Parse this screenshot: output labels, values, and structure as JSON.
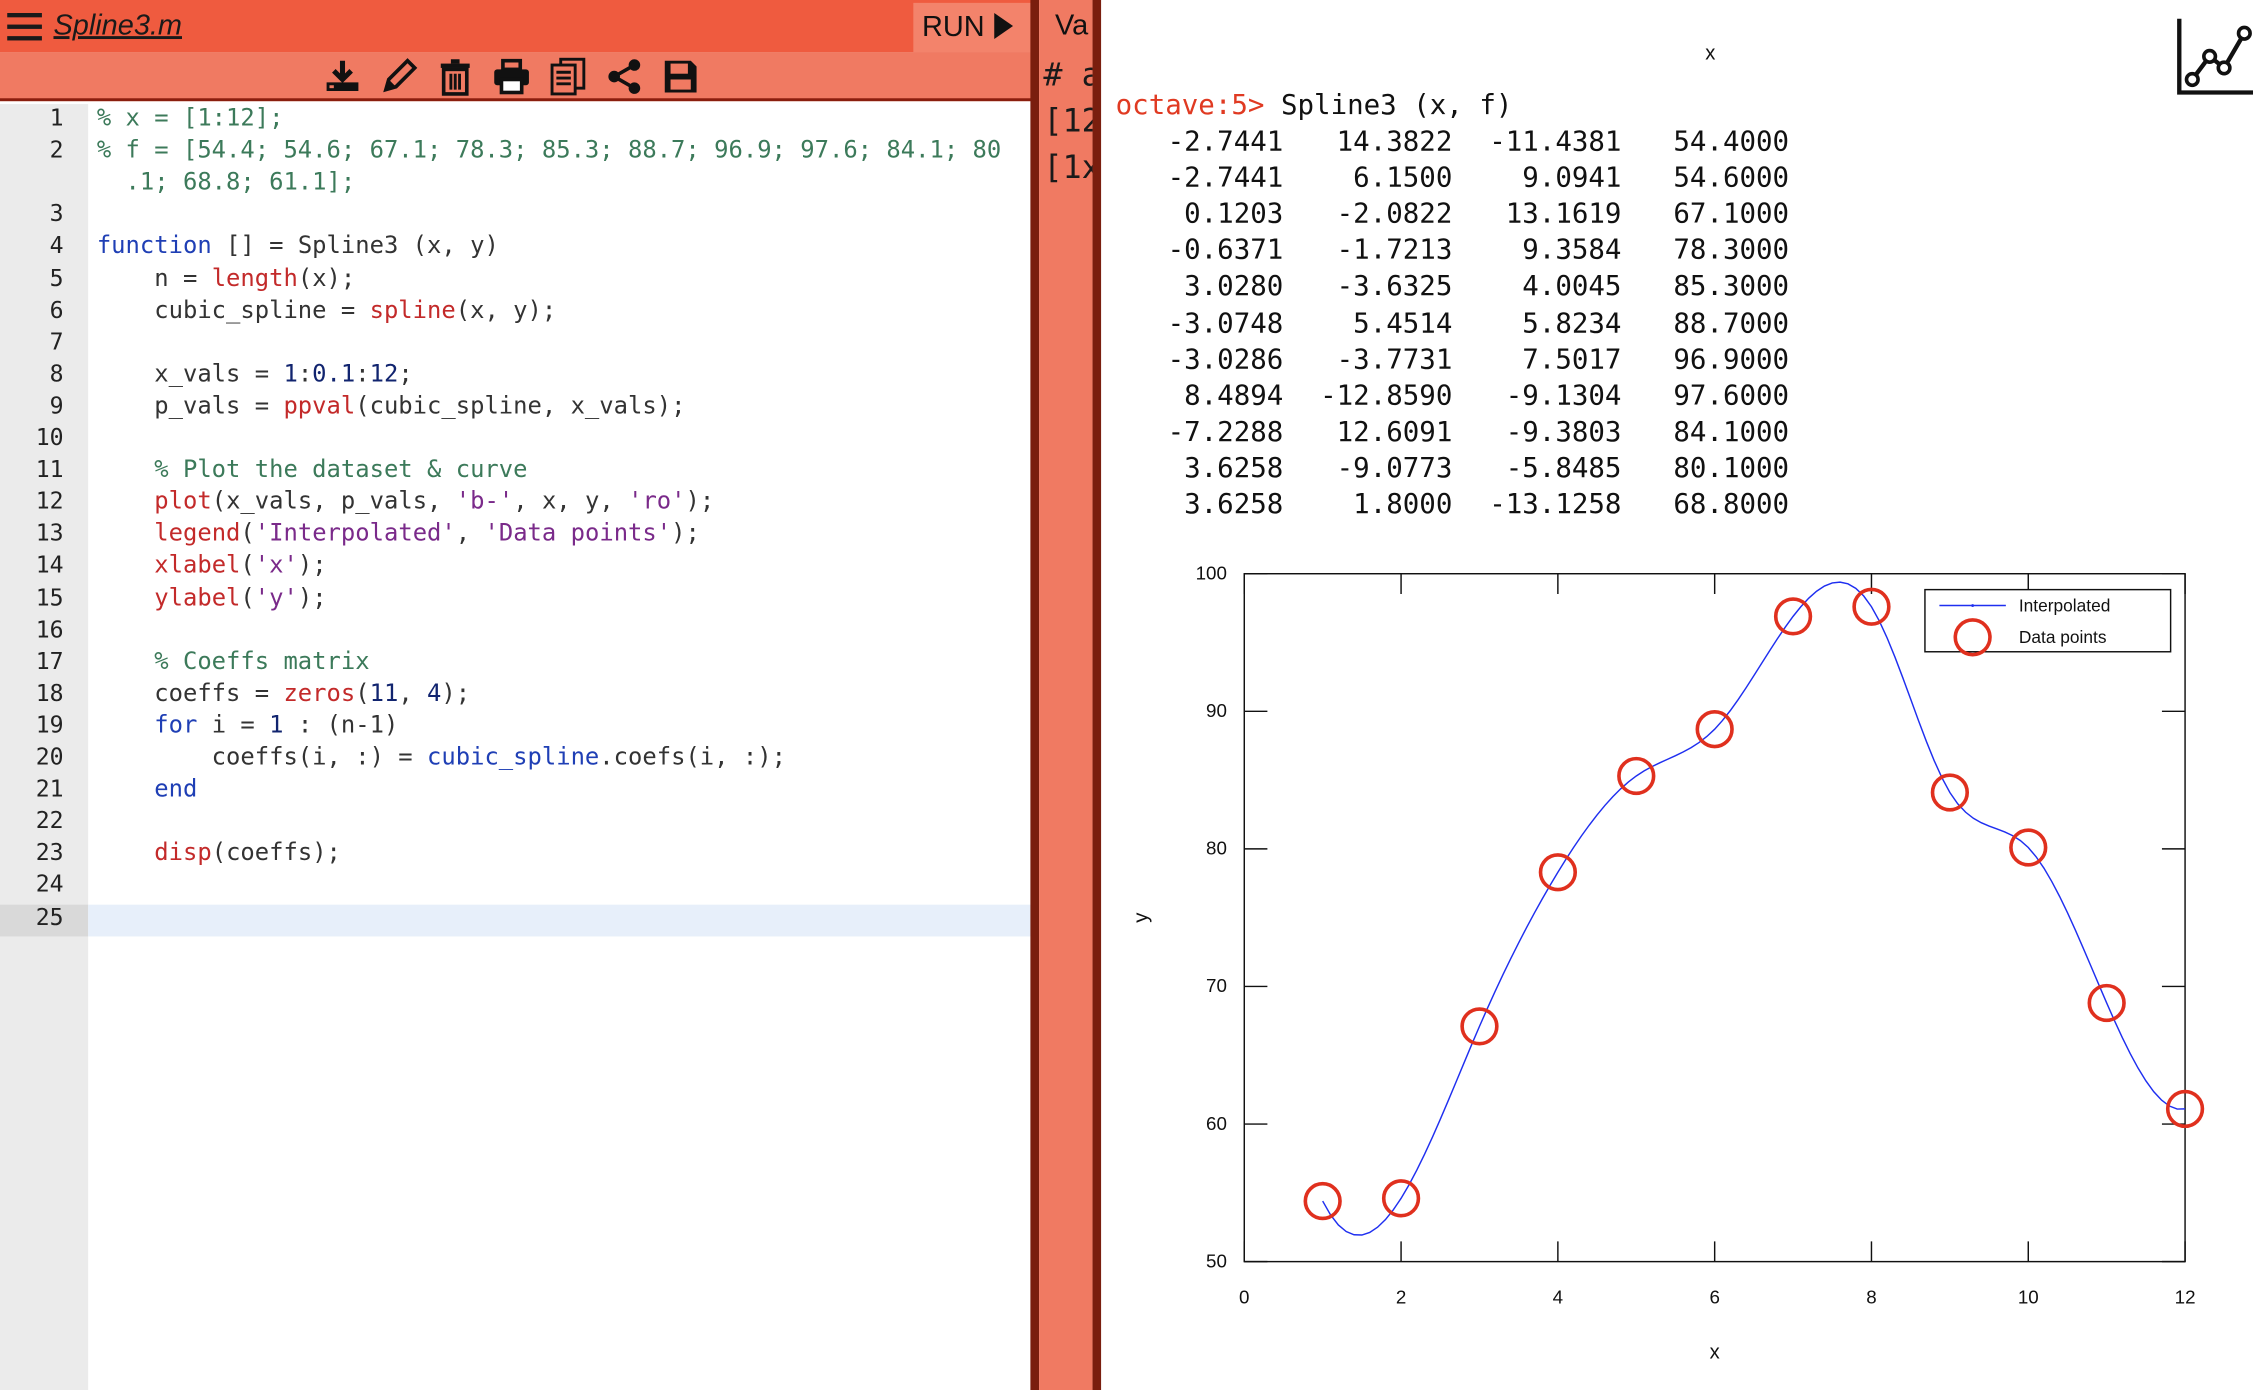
{
  "editor": {
    "filename": "Spline3.m",
    "run_label": "RUN",
    "toolbar_icons": [
      "download-icon",
      "pencil-icon",
      "trash-icon",
      "print-icon",
      "document-icon",
      "share-icon",
      "save-icon"
    ],
    "line_numbers": [
      "1",
      "2",
      "",
      "3",
      "4",
      "5",
      "6",
      "7",
      "8",
      "9",
      "10",
      "11",
      "12",
      "13",
      "14",
      "15",
      "16",
      "17",
      "18",
      "19",
      "20",
      "21",
      "22",
      "23",
      "24",
      "25"
    ],
    "code_lines": [
      [
        {
          "t": "% x = [1:12];",
          "c": "cm"
        }
      ],
      [
        {
          "t": "% f = [54.4; 54.6; 67.1; 78.3; 85.3; 88.7; 96.9; 97.6; 84.1; 80",
          "c": "cm"
        }
      ],
      [
        {
          "t": "  .1; 68.8; 61.1];",
          "c": "cm"
        }
      ],
      [],
      [
        {
          "t": "function",
          "c": "kw"
        },
        {
          "t": " [] = Spline3 (x, y)",
          "c": "pl"
        }
      ],
      [
        {
          "t": "    n = ",
          "c": "pl"
        },
        {
          "t": "length",
          "c": "fn"
        },
        {
          "t": "(x);",
          "c": "pl"
        }
      ],
      [
        {
          "t": "    cubic_spline = ",
          "c": "pl"
        },
        {
          "t": "spline",
          "c": "fn"
        },
        {
          "t": "(x, y);",
          "c": "pl"
        }
      ],
      [],
      [
        {
          "t": "    x_vals = ",
          "c": "pl"
        },
        {
          "t": "1",
          "c": "nm"
        },
        {
          "t": ":",
          "c": "pl"
        },
        {
          "t": "0.1",
          "c": "nm"
        },
        {
          "t": ":",
          "c": "pl"
        },
        {
          "t": "12",
          "c": "nm"
        },
        {
          "t": ";",
          "c": "pl"
        }
      ],
      [
        {
          "t": "    p_vals = ",
          "c": "pl"
        },
        {
          "t": "ppval",
          "c": "fn"
        },
        {
          "t": "(cubic_spline, x_vals);",
          "c": "pl"
        }
      ],
      [],
      [
        {
          "t": "    % Plot the dataset & curve",
          "c": "cm"
        }
      ],
      [
        {
          "t": "    ",
          "c": "pl"
        },
        {
          "t": "plot",
          "c": "fn"
        },
        {
          "t": "(x_vals, p_vals, ",
          "c": "pl"
        },
        {
          "t": "'b-'",
          "c": "st"
        },
        {
          "t": ", x, y, ",
          "c": "pl"
        },
        {
          "t": "'ro'",
          "c": "st"
        },
        {
          "t": ");",
          "c": "pl"
        }
      ],
      [
        {
          "t": "    ",
          "c": "pl"
        },
        {
          "t": "legend",
          "c": "fn"
        },
        {
          "t": "(",
          "c": "pl"
        },
        {
          "t": "'Interpolated'",
          "c": "st"
        },
        {
          "t": ", ",
          "c": "pl"
        },
        {
          "t": "'Data points'",
          "c": "st"
        },
        {
          "t": ");",
          "c": "pl"
        }
      ],
      [
        {
          "t": "    ",
          "c": "pl"
        },
        {
          "t": "xlabel",
          "c": "fn"
        },
        {
          "t": "(",
          "c": "pl"
        },
        {
          "t": "'x'",
          "c": "st"
        },
        {
          "t": ");",
          "c": "pl"
        }
      ],
      [
        {
          "t": "    ",
          "c": "pl"
        },
        {
          "t": "ylabel",
          "c": "fn"
        },
        {
          "t": "(",
          "c": "pl"
        },
        {
          "t": "'y'",
          "c": "st"
        },
        {
          "t": ");",
          "c": "pl"
        }
      ],
      [],
      [
        {
          "t": "    % Coeffs matrix",
          "c": "cm"
        }
      ],
      [
        {
          "t": "    coeffs = ",
          "c": "pl"
        },
        {
          "t": "zeros",
          "c": "fn"
        },
        {
          "t": "(",
          "c": "pl"
        },
        {
          "t": "11",
          "c": "nm"
        },
        {
          "t": ", ",
          "c": "pl"
        },
        {
          "t": "4",
          "c": "nm"
        },
        {
          "t": ");",
          "c": "pl"
        }
      ],
      [
        {
          "t": "    ",
          "c": "pl"
        },
        {
          "t": "for",
          "c": "kw"
        },
        {
          "t": " i = ",
          "c": "pl"
        },
        {
          "t": "1",
          "c": "nm"
        },
        {
          "t": " : (n-1)",
          "c": "pl"
        }
      ],
      [
        {
          "t": "        coeffs(i, :) = ",
          "c": "pl"
        },
        {
          "t": "cubic_spline",
          "c": "kw"
        },
        {
          "t": ".coefs(i, :);",
          "c": "pl"
        }
      ],
      [
        {
          "t": "    ",
          "c": "pl"
        },
        {
          "t": "end",
          "c": "kw"
        }
      ],
      [],
      [
        {
          "t": "    ",
          "c": "pl"
        },
        {
          "t": "disp",
          "c": "fn"
        },
        {
          "t": "(coeffs);",
          "c": "pl"
        }
      ],
      [],
      []
    ]
  },
  "variables": {
    "title": "Va",
    "lines": [
      "# a",
      "[12",
      "[1x"
    ]
  },
  "console": {
    "top_axis_label": "x",
    "prompt": "octave:5>",
    "command": " Spline3 (x, f)",
    "output_rows": [
      [
        "-2.7441",
        "14.3822",
        "-11.4381",
        "54.4000"
      ],
      [
        "-2.7441",
        "6.1500",
        "9.0941",
        "54.6000"
      ],
      [
        "0.1203",
        "-2.0822",
        "13.1619",
        "67.1000"
      ],
      [
        "-0.6371",
        "-1.7213",
        "9.3584",
        "78.3000"
      ],
      [
        "3.0280",
        "-3.6325",
        "4.0045",
        "85.3000"
      ],
      [
        "-3.0748",
        "5.4514",
        "5.8234",
        "88.7000"
      ],
      [
        "-3.0286",
        "-3.7731",
        "7.5017",
        "96.9000"
      ],
      [
        "8.4894",
        "-12.8590",
        "-9.1304",
        "97.6000"
      ],
      [
        "-7.2288",
        "12.6091",
        "-9.3803",
        "84.1000"
      ],
      [
        "3.6258",
        "-9.0773",
        "-5.8485",
        "80.1000"
      ],
      [
        "3.6258",
        "1.8000",
        "-13.1258",
        "68.8000"
      ]
    ]
  },
  "chart_data": {
    "type": "line",
    "title": "",
    "xlabel": "x",
    "ylabel": "y",
    "xlim": [
      0,
      12
    ],
    "ylim": [
      50,
      100
    ],
    "xticks": [
      "0",
      "2",
      "4",
      "6",
      "8",
      "10",
      "12"
    ],
    "yticks": [
      "50",
      "60",
      "70",
      "80",
      "90",
      "100"
    ],
    "legend_position": "top-right",
    "series": [
      {
        "name": "Interpolated",
        "style": "line",
        "color": "#1f2ff0",
        "source": "cubic spline through data points"
      },
      {
        "name": "Data points",
        "style": "circle",
        "color": "#e0301e",
        "x": [
          1,
          2,
          3,
          4,
          5,
          6,
          7,
          8,
          9,
          10,
          11,
          12
        ],
        "y": [
          54.4,
          54.6,
          67.1,
          78.3,
          85.3,
          88.7,
          96.9,
          97.6,
          84.1,
          80.1,
          68.8,
          61.1
        ]
      }
    ],
    "spline_coeffs": [
      [
        -2.7441,
        14.3822,
        -11.4381,
        54.4
      ],
      [
        -2.7441,
        6.15,
        9.0941,
        54.6
      ],
      [
        0.1203,
        -2.0822,
        13.1619,
        67.1
      ],
      [
        -0.6371,
        -1.7213,
        9.3584,
        78.3
      ],
      [
        3.028,
        -3.6325,
        4.0045,
        85.3
      ],
      [
        -3.0748,
        5.4514,
        5.8234,
        88.7
      ],
      [
        -3.0286,
        -3.7731,
        7.5017,
        96.9
      ],
      [
        8.4894,
        -12.859,
        -9.1304,
        97.6
      ],
      [
        -7.2288,
        12.6091,
        -9.3803,
        84.1
      ],
      [
        3.6258,
        -9.0773,
        -5.8485,
        80.1
      ],
      [
        3.6258,
        1.8,
        -13.1258,
        68.8
      ]
    ]
  }
}
